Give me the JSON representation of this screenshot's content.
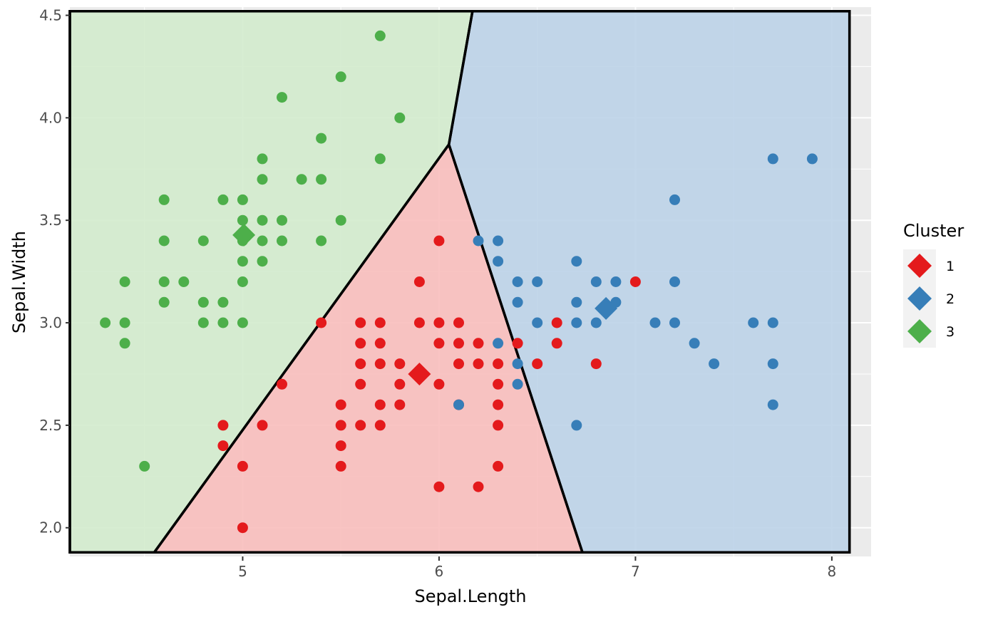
{
  "chart_data": {
    "type": "scatter",
    "xlabel": "Sepal.Length",
    "ylabel": "Sepal.Width",
    "xlim": [
      4.12,
      8.2
    ],
    "ylim": [
      1.86,
      4.54
    ],
    "x_ticks": [
      "5",
      "6",
      "7",
      "8"
    ],
    "x_tick_values": [
      5,
      6,
      7,
      8
    ],
    "y_ticks": [
      "2.0",
      "2.5",
      "3.0",
      "3.5",
      "4.0",
      "4.5"
    ],
    "y_tick_values": [
      2.0,
      2.5,
      3.0,
      3.5,
      4.0,
      4.5
    ],
    "grid": true,
    "legend": {
      "title": "Cluster",
      "position": "right",
      "entries": [
        {
          "label": "1",
          "color": "#e41a1c"
        },
        {
          "label": "2",
          "color": "#377eb8"
        },
        {
          "label": "3",
          "color": "#4daf4a"
        }
      ]
    },
    "regions": [
      {
        "cluster": "1",
        "fill": "#f8bebc",
        "vertices": [
          [
            4.55,
            1.88
          ],
          [
            6.05,
            3.87
          ],
          [
            6.73,
            1.88
          ]
        ]
      },
      {
        "cluster": "2",
        "fill": "#bdd3e8",
        "vertices": [
          [
            6.05,
            3.87
          ],
          [
            6.17,
            4.52
          ],
          [
            8.09,
            4.52
          ],
          [
            8.09,
            1.88
          ],
          [
            6.73,
            1.88
          ]
        ]
      },
      {
        "cluster": "3",
        "fill": "#d3ebcd",
        "vertices": [
          [
            4.12,
            1.88
          ],
          [
            4.12,
            4.52
          ],
          [
            6.17,
            4.52
          ],
          [
            6.05,
            3.87
          ],
          [
            4.55,
            1.88
          ]
        ]
      }
    ],
    "boundary_box": {
      "x": [
        4.12,
        8.09
      ],
      "y": [
        1.88,
        4.52
      ]
    },
    "centers": [
      {
        "cluster": "1",
        "x": 5.9,
        "y": 2.75
      },
      {
        "cluster": "2",
        "x": 6.85,
        "y": 3.07
      },
      {
        "cluster": "3",
        "x": 5.006,
        "y": 3.428
      }
    ],
    "series": [
      {
        "name": "1",
        "color": "#e41a1c",
        "points": [
          [
            6.0,
            3.4
          ],
          [
            5.9,
            3.2
          ],
          [
            7.0,
            3.2
          ],
          [
            5.4,
            3.0
          ],
          [
            5.6,
            3.0
          ],
          [
            5.7,
            3.0
          ],
          [
            5.9,
            3.0
          ],
          [
            6.0,
            3.0
          ],
          [
            6.1,
            3.0
          ],
          [
            6.6,
            3.0
          ],
          [
            5.6,
            2.9
          ],
          [
            5.7,
            2.9
          ],
          [
            6.0,
            2.9
          ],
          [
            6.1,
            2.9
          ],
          [
            6.2,
            2.9
          ],
          [
            6.4,
            2.9
          ],
          [
            6.6,
            2.9
          ],
          [
            5.6,
            2.8
          ],
          [
            5.7,
            2.8
          ],
          [
            5.8,
            2.8
          ],
          [
            6.1,
            2.8
          ],
          [
            6.2,
            2.8
          ],
          [
            6.3,
            2.8
          ],
          [
            6.5,
            2.8
          ],
          [
            6.8,
            2.8
          ],
          [
            5.2,
            2.7
          ],
          [
            5.6,
            2.7
          ],
          [
            5.8,
            2.7
          ],
          [
            6.0,
            2.7
          ],
          [
            6.3,
            2.7
          ],
          [
            5.5,
            2.6
          ],
          [
            5.7,
            2.6
          ],
          [
            5.8,
            2.6
          ],
          [
            6.1,
            2.6
          ],
          [
            6.3,
            2.6
          ],
          [
            4.9,
            2.5
          ],
          [
            5.1,
            2.5
          ],
          [
            5.5,
            2.5
          ],
          [
            5.6,
            2.5
          ],
          [
            5.7,
            2.5
          ],
          [
            6.3,
            2.5
          ],
          [
            4.9,
            2.4
          ],
          [
            5.5,
            2.4
          ],
          [
            5.0,
            2.3
          ],
          [
            5.5,
            2.3
          ],
          [
            6.3,
            2.3
          ],
          [
            6.0,
            2.2
          ],
          [
            6.2,
            2.2
          ],
          [
            5.0,
            2.0
          ]
        ]
      },
      {
        "name": "2",
        "color": "#377eb8",
        "points": [
          [
            7.7,
            3.8
          ],
          [
            7.9,
            3.8
          ],
          [
            7.2,
            3.6
          ],
          [
            6.2,
            3.4
          ],
          [
            6.3,
            3.4
          ],
          [
            6.3,
            3.3
          ],
          [
            6.7,
            3.3
          ],
          [
            6.4,
            3.2
          ],
          [
            6.5,
            3.2
          ],
          [
            6.8,
            3.2
          ],
          [
            6.9,
            3.2
          ],
          [
            7.2,
            3.2
          ],
          [
            6.4,
            3.1
          ],
          [
            6.7,
            3.1
          ],
          [
            6.9,
            3.1
          ],
          [
            6.5,
            3.0
          ],
          [
            6.7,
            3.0
          ],
          [
            6.8,
            3.0
          ],
          [
            7.1,
            3.0
          ],
          [
            7.2,
            3.0
          ],
          [
            7.6,
            3.0
          ],
          [
            7.7,
            3.0
          ],
          [
            6.3,
            2.9
          ],
          [
            7.3,
            2.9
          ],
          [
            6.4,
            2.8
          ],
          [
            7.4,
            2.8
          ],
          [
            7.7,
            2.8
          ],
          [
            6.4,
            2.7
          ],
          [
            6.1,
            2.6
          ],
          [
            7.7,
            2.6
          ],
          [
            6.7,
            2.5
          ]
        ]
      },
      {
        "name": "3",
        "color": "#4daf4a",
        "points": [
          [
            5.7,
            4.4
          ],
          [
            5.5,
            4.2
          ],
          [
            5.2,
            4.1
          ],
          [
            5.8,
            4.0
          ],
          [
            5.4,
            3.9
          ],
          [
            5.1,
            3.8
          ],
          [
            5.7,
            3.8
          ],
          [
            5.1,
            3.7
          ],
          [
            5.3,
            3.7
          ],
          [
            5.4,
            3.7
          ],
          [
            4.6,
            3.6
          ],
          [
            4.9,
            3.6
          ],
          [
            5.0,
            3.6
          ],
          [
            5.0,
            3.5
          ],
          [
            5.1,
            3.5
          ],
          [
            5.2,
            3.5
          ],
          [
            5.5,
            3.5
          ],
          [
            4.6,
            3.4
          ],
          [
            4.8,
            3.4
          ],
          [
            5.0,
            3.4
          ],
          [
            5.1,
            3.4
          ],
          [
            5.2,
            3.4
          ],
          [
            5.4,
            3.4
          ],
          [
            5.0,
            3.3
          ],
          [
            5.1,
            3.3
          ],
          [
            4.4,
            3.2
          ],
          [
            4.6,
            3.2
          ],
          [
            4.7,
            3.2
          ],
          [
            5.0,
            3.2
          ],
          [
            4.6,
            3.1
          ],
          [
            4.8,
            3.1
          ],
          [
            4.9,
            3.1
          ],
          [
            4.3,
            3.0
          ],
          [
            4.4,
            3.0
          ],
          [
            4.8,
            3.0
          ],
          [
            4.9,
            3.0
          ],
          [
            5.0,
            3.0
          ],
          [
            4.4,
            2.9
          ],
          [
            4.5,
            2.3
          ]
        ]
      }
    ]
  }
}
